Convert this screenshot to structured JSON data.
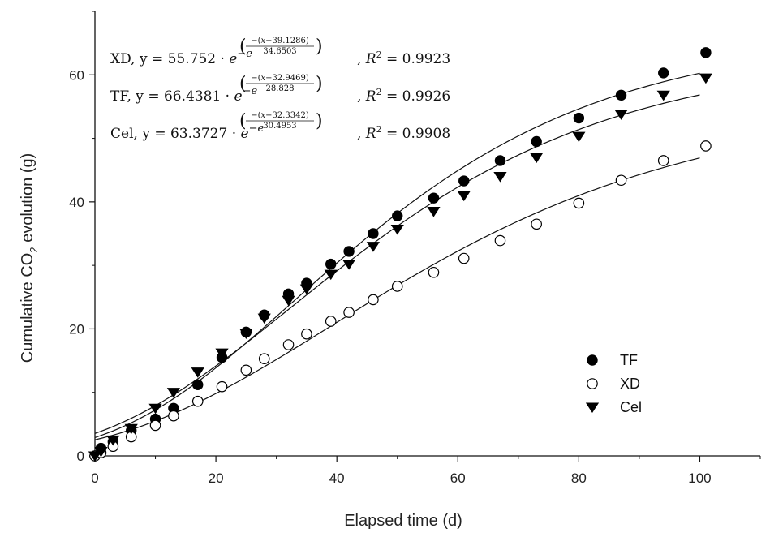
{
  "chart_data": {
    "type": "scatter",
    "title": "",
    "xlabel": "Elapsed time (d)",
    "ylabel_parts": [
      "Cumulative CO",
      "2",
      " evolution (g)"
    ],
    "xlim": [
      0,
      110
    ],
    "ylim": [
      0,
      70
    ],
    "x_ticks": [
      0,
      20,
      40,
      60,
      80,
      100
    ],
    "y_ticks": [
      0,
      20,
      40,
      60
    ],
    "grid": false,
    "legend_position": "bottom-right",
    "series": [
      {
        "name": "TF",
        "marker": "filled-circle",
        "x": [
          0,
          1,
          3,
          6,
          10,
          13,
          17,
          21,
          25,
          28,
          32,
          35,
          39,
          42,
          46,
          50,
          56,
          61,
          67,
          73,
          80,
          87,
          94,
          101
        ],
        "y": [
          0,
          1.2,
          2.2,
          4.0,
          5.8,
          7.5,
          11.2,
          15.5,
          19.5,
          22.2,
          25.5,
          27.2,
          30.2,
          32.2,
          35.0,
          37.8,
          40.6,
          43.3,
          46.5,
          49.5,
          53.2,
          56.8,
          60.3,
          63.5
        ]
      },
      {
        "name": "XD",
        "marker": "open-circle",
        "x": [
          0,
          1,
          3,
          6,
          10,
          13,
          17,
          21,
          25,
          28,
          32,
          35,
          39,
          42,
          46,
          50,
          56,
          61,
          67,
          73,
          80,
          87,
          94,
          101
        ],
        "y": [
          0,
          0.5,
          1.5,
          3.0,
          4.8,
          6.3,
          8.6,
          10.9,
          13.5,
          15.3,
          17.5,
          19.2,
          21.2,
          22.6,
          24.6,
          26.7,
          28.9,
          31.1,
          33.9,
          36.5,
          39.8,
          43.4,
          46.5,
          48.8
        ]
      },
      {
        "name": "Cel",
        "marker": "filled-triangle-down",
        "x": [
          0,
          1,
          3,
          6,
          10,
          13,
          17,
          21,
          25,
          28,
          32,
          35,
          39,
          42,
          46,
          50,
          56,
          61,
          67,
          73,
          80,
          87,
          94,
          101
        ],
        "y": [
          0,
          0.7,
          2.5,
          4.3,
          7.5,
          10.0,
          13.2,
          16.2,
          19.3,
          21.7,
          24.5,
          26.3,
          28.6,
          30.2,
          33.0,
          35.7,
          38.5,
          41.0,
          44.0,
          47.0,
          50.3,
          53.8,
          56.8,
          59.5
        ]
      }
    ],
    "fits": [
      {
        "series": "XD",
        "a": 55.752,
        "b": 39.1286,
        "c": 34.6503
      },
      {
        "series": "TF",
        "a": 66.4381,
        "b": 32.9469,
        "c": 28.828
      },
      {
        "series": "Cel",
        "a": 63.3727,
        "b": 32.3342,
        "c": 30.4953
      }
    ],
    "annotations": [
      {
        "label": "XD",
        "coef": "55.752",
        "num": "−(𝑥−39.1286)",
        "den": "34.6503",
        "r2": "0.9923"
      },
      {
        "label": "TF",
        "coef": "66.4381",
        "num": "−(𝑥−32.9469)",
        "den": "28.828",
        "r2": "0.9926"
      },
      {
        "label": "Cel",
        "coef": "63.3727",
        "num": "−(𝑥−32.3342)",
        "den": "30.4953",
        "r2": "0.9908"
      }
    ]
  }
}
